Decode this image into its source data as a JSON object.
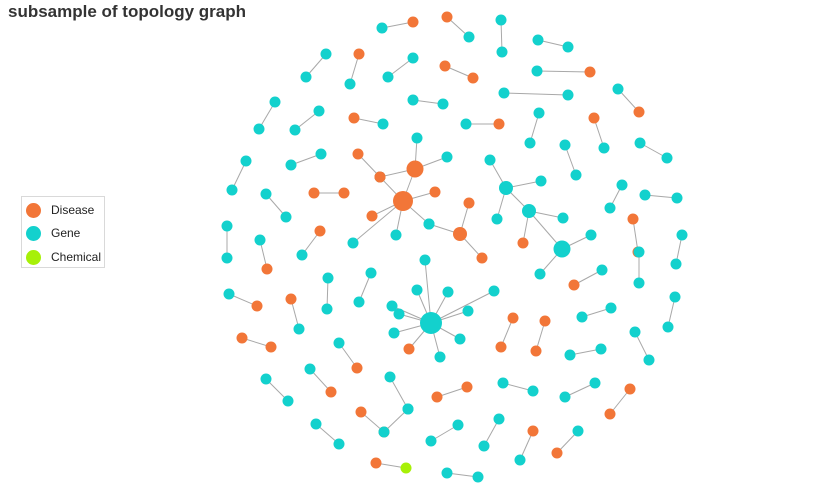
{
  "title": "subsample of topology graph",
  "legend": [
    {
      "label": "Disease",
      "color": "#f27638"
    },
    {
      "label": "Gene",
      "color": "#13d1cd"
    },
    {
      "label": "Chemical",
      "color": "#a7f008"
    }
  ],
  "graph": {
    "node_types": {
      "D": {
        "name": "Disease",
        "color": "#f27638"
      },
      "G": {
        "name": "Gene",
        "color": "#13d1cd"
      },
      "C": {
        "name": "Chemical",
        "color": "#a7f008"
      }
    },
    "components": [
      {
        "hub": "D",
        "leaves": [
          "G",
          "G",
          "G",
          "D",
          "D",
          "G",
          "D"
        ]
      },
      {
        "hub": "D",
        "leaves": [
          "G",
          "G",
          "D"
        ]
      },
      {
        "hub": "D",
        "leaves": [
          "G",
          "D",
          "D"
        ]
      },
      {
        "hub": "G",
        "leaves": [
          "G",
          "G",
          "G",
          "G",
          "G",
          "G",
          "G",
          "D",
          "G",
          "G",
          "G"
        ]
      },
      {
        "hub": "G",
        "leaves": [
          "G",
          "G",
          "G"
        ]
      },
      {
        "hub": "G",
        "leaves": [
          "G",
          "G",
          "D"
        ]
      },
      {
        "hub": "G",
        "leaves": [
          "G",
          "G",
          "G"
        ]
      },
      {
        "pair": [
          "G",
          "D"
        ]
      },
      {
        "pair": [
          "D",
          "G"
        ]
      },
      {
        "pair": [
          "G",
          "G"
        ]
      },
      {
        "pair": [
          "G",
          "G"
        ]
      },
      {
        "pair": [
          "G",
          "G"
        ]
      },
      {
        "pair": [
          "D",
          "G"
        ]
      },
      {
        "pair": [
          "G",
          "G"
        ]
      },
      {
        "pair": [
          "D",
          "D"
        ]
      },
      {
        "pair": [
          "G",
          "D"
        ]
      },
      {
        "pair": [
          "G",
          "G"
        ]
      },
      {
        "pair": [
          "G",
          "G"
        ]
      },
      {
        "pair": [
          "G",
          "G"
        ]
      },
      {
        "pair": [
          "D",
          "G"
        ]
      },
      {
        "pair": [
          "G",
          "G"
        ]
      },
      {
        "pair": [
          "G",
          "D"
        ]
      },
      {
        "pair": [
          "G",
          "G"
        ]
      },
      {
        "pair": [
          "D",
          "G"
        ]
      },
      {
        "pair": [
          "G",
          "D"
        ]
      },
      {
        "pair": [
          "G",
          "G"
        ]
      },
      {
        "pair": [
          "G",
          "G"
        ]
      },
      {
        "pair": [
          "D",
          "D"
        ]
      },
      {
        "pair": [
          "G",
          "G"
        ]
      },
      {
        "pair": [
          "G",
          "G"
        ]
      },
      {
        "pair": [
          "G",
          "G"
        ]
      },
      {
        "pair": [
          "D",
          "D"
        ]
      },
      {
        "pair": [
          "G",
          "G"
        ]
      },
      {
        "pair": [
          "G",
          "G"
        ]
      },
      {
        "pair": [
          "G",
          "G"
        ]
      },
      {
        "pair": [
          "G",
          "D"
        ]
      },
      {
        "pair": [
          "D",
          "G"
        ]
      },
      {
        "pair": [
          "D",
          "D"
        ]
      },
      {
        "pair": [
          "G",
          "G"
        ]
      },
      {
        "pair": [
          "G",
          "G"
        ]
      },
      {
        "pair": [
          "G",
          "G"
        ]
      },
      {
        "pair": [
          "D",
          "G"
        ]
      },
      {
        "pair": [
          "G",
          "G"
        ]
      },
      {
        "pair": [
          "G",
          "D"
        ]
      },
      {
        "pair": [
          "D",
          "G"
        ]
      },
      {
        "pair": [
          "D",
          "D"
        ]
      },
      {
        "pair": [
          "D",
          "D"
        ]
      },
      {
        "pair": [
          "G",
          "G"
        ]
      },
      {
        "pair": [
          "G",
          "G"
        ]
      },
      {
        "pair": [
          "D",
          "D"
        ]
      },
      {
        "pair": [
          "G",
          "D"
        ]
      },
      {
        "pair": [
          "G",
          "G"
        ]
      },
      {
        "pair": [
          "G",
          "G"
        ]
      },
      {
        "pair": [
          "G",
          "D"
        ]
      },
      {
        "pair": [
          "G",
          "G"
        ]
      },
      {
        "pair": [
          "G",
          "G"
        ]
      },
      {
        "pair": [
          "D",
          "D"
        ]
      },
      {
        "pair": [
          "G",
          "G"
        ]
      },
      {
        "pair": [
          "G",
          "G"
        ]
      },
      {
        "pair": [
          "D",
          "D"
        ]
      },
      {
        "pair": [
          "G",
          "G"
        ]
      },
      {
        "pair": [
          "G",
          "G"
        ]
      },
      {
        "pair": [
          "G",
          "G"
        ]
      },
      {
        "pair": [
          "G",
          "D"
        ]
      },
      {
        "pair": [
          "G",
          "D"
        ]
      },
      {
        "pair": [
          "D",
          "C"
        ]
      },
      {
        "pair": [
          "G",
          "G"
        ]
      },
      {
        "pair": [
          "D",
          "D"
        ]
      },
      {
        "pair": [
          "G",
          "G"
        ]
      }
    ]
  }
}
